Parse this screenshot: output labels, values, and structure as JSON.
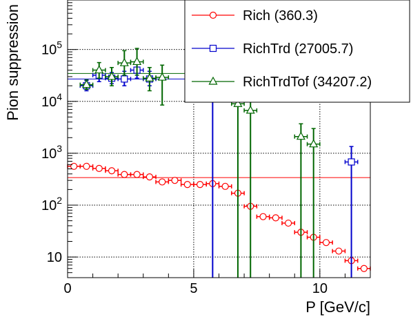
{
  "chart_data": {
    "type": "scatter",
    "xlabel": "P [GeV/c]",
    "ylabel": "Pion suppression",
    "xlim": [
      0,
      12
    ],
    "ylim": [
      4,
      900000
    ],
    "yscale": "log",
    "grid": true,
    "legend_position": "top-right",
    "x_ticks": [
      {
        "v": 0,
        "label": "0"
      },
      {
        "v": 5,
        "label": "5"
      },
      {
        "v": 10,
        "label": "10"
      }
    ],
    "y_ticks": [
      {
        "v": 10,
        "label": "10"
      },
      {
        "v": 100,
        "label": "10^2"
      },
      {
        "v": 1000,
        "label": "10^3"
      },
      {
        "v": 10000,
        "label": "10^4"
      },
      {
        "v": 100000,
        "label": "10^5"
      }
    ],
    "series": [
      {
        "name": "Rich (360.3)",
        "color": "#ff0000",
        "marker": "circle",
        "fit": 340,
        "points": [
          {
            "x": 0.25,
            "xerr": 0.25,
            "y": 560
          },
          {
            "x": 0.75,
            "xerr": 0.25,
            "y": 560
          },
          {
            "x": 1.25,
            "xerr": 0.25,
            "y": 510
          },
          {
            "x": 1.75,
            "xerr": 0.25,
            "y": 460
          },
          {
            "x": 2.25,
            "xerr": 0.25,
            "y": 390
          },
          {
            "x": 2.75,
            "xerr": 0.25,
            "y": 390
          },
          {
            "x": 3.25,
            "xerr": 0.25,
            "y": 350
          },
          {
            "x": 3.75,
            "xerr": 0.25,
            "y": 280
          },
          {
            "x": 4.25,
            "xerr": 0.25,
            "y": 300
          },
          {
            "x": 4.75,
            "xerr": 0.25,
            "y": 250
          },
          {
            "x": 5.25,
            "xerr": 0.25,
            "y": 250
          },
          {
            "x": 5.75,
            "xerr": 0.25,
            "y": 260
          },
          {
            "x": 6.25,
            "xerr": 0.25,
            "y": 230
          },
          {
            "x": 6.75,
            "xerr": 0.25,
            "y": 170
          },
          {
            "x": 7.25,
            "xerr": 0.25,
            "y": 95
          },
          {
            "x": 7.75,
            "xerr": 0.25,
            "y": 60
          },
          {
            "x": 8.25,
            "xerr": 0.25,
            "y": 57
          },
          {
            "x": 8.75,
            "xerr": 0.25,
            "y": 45
          },
          {
            "x": 9.25,
            "xerr": 0.25,
            "y": 30
          },
          {
            "x": 9.75,
            "xerr": 0.25,
            "y": 24
          },
          {
            "x": 10.25,
            "xerr": 0.25,
            "y": 19
          },
          {
            "x": 10.75,
            "xerr": 0.25,
            "y": 13
          },
          {
            "x": 11.25,
            "xerr": 0.25,
            "y": 8.5
          },
          {
            "x": 11.75,
            "xerr": 0.25,
            "y": 6
          }
        ]
      },
      {
        "name": "RichTrd (27005.7)",
        "color": "#0000cc",
        "marker": "square",
        "fit": 27000,
        "points": [
          {
            "x": 0.75,
            "xerr": 0.25,
            "y": 20000,
            "ylo": 16000,
            "yhi": 25000
          },
          {
            "x": 1.25,
            "xerr": 0.25,
            "y": 32000,
            "ylo": 24000,
            "yhi": 42000
          },
          {
            "x": 1.75,
            "xerr": 0.25,
            "y": 28000,
            "ylo": 22000,
            "yhi": 36000
          },
          {
            "x": 2.25,
            "xerr": 0.25,
            "y": 27000,
            "ylo": 20000,
            "yhi": 38000
          },
          {
            "x": 2.75,
            "xerr": 0.25,
            "y": 40000,
            "ylo": 28000,
            "yhi": 58000
          },
          {
            "x": 3.25,
            "xerr": 0.25,
            "y": 27000,
            "ylo": 20000,
            "yhi": 38000
          },
          {
            "x": 5.75,
            "xerr": 0.25,
            "y": 16000,
            "ylo": 4,
            "yhi": 28000
          },
          {
            "x": 11.25,
            "xerr": 0.25,
            "y": 680,
            "ylo": 4,
            "yhi": 1350
          }
        ]
      },
      {
        "name": "RichTrdTof (34207.2)",
        "color": "#006600",
        "marker": "triangle",
        "fit": 34500,
        "points": [
          {
            "x": 0.75,
            "xerr": 0.25,
            "y": 21000,
            "ylo": 17000,
            "yhi": 26000
          },
          {
            "x": 1.25,
            "xerr": 0.25,
            "y": 40000,
            "ylo": 28000,
            "yhi": 56000
          },
          {
            "x": 1.75,
            "xerr": 0.25,
            "y": 30000,
            "ylo": 20000,
            "yhi": 45000
          },
          {
            "x": 2.25,
            "xerr": 0.25,
            "y": 55000,
            "ylo": 32000,
            "yhi": 95000
          },
          {
            "x": 2.75,
            "xerr": 0.25,
            "y": 58000,
            "ylo": 32000,
            "yhi": 105000
          },
          {
            "x": 3.25,
            "xerr": 0.25,
            "y": 28000,
            "ylo": 16000,
            "yhi": 45000
          },
          {
            "x": 3.75,
            "xerr": 0.25,
            "y": 29000,
            "ylo": 8500,
            "yhi": 50000
          },
          {
            "x": 6.75,
            "xerr": 0.25,
            "y": 9000,
            "ylo": 4,
            "yhi": 18000
          },
          {
            "x": 7.25,
            "xerr": 0.25,
            "y": 6700,
            "ylo": 4,
            "yhi": 12500
          },
          {
            "x": 9.25,
            "xerr": 0.25,
            "y": 2100,
            "ylo": 4,
            "yhi": 3700
          },
          {
            "x": 9.75,
            "xerr": 0.25,
            "y": 1500,
            "ylo": 4,
            "yhi": 3000
          }
        ]
      }
    ]
  }
}
